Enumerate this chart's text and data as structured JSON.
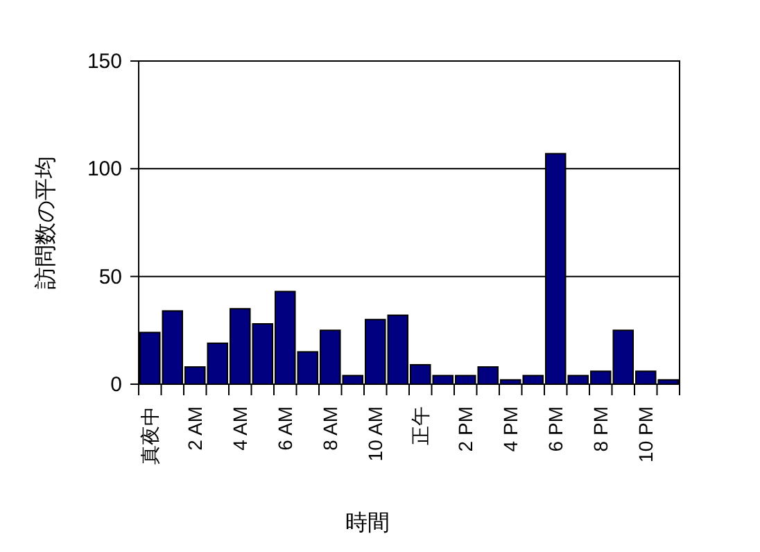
{
  "chart_data": {
    "type": "bar",
    "xlabel": "時間",
    "ylabel": "訪問数の平均",
    "categories": [
      "真夜中",
      null,
      "2 AM",
      null,
      "4 AM",
      null,
      "6 AM",
      null,
      "8 AM",
      null,
      "10 AM",
      null,
      "正午",
      null,
      "2 PM",
      null,
      "4 PM",
      null,
      "6 PM",
      null,
      "8 PM",
      null,
      "10 PM",
      null
    ],
    "values": [
      24,
      34,
      8,
      19,
      35,
      28,
      43,
      15,
      25,
      4,
      30,
      32,
      9,
      4,
      4,
      8,
      2,
      4,
      107,
      4,
      6,
      25,
      6,
      2
    ],
    "color": "#000080",
    "ylim": [
      0,
      150
    ],
    "yticks": [
      0,
      50,
      100,
      150
    ],
    "grid": "y"
  }
}
